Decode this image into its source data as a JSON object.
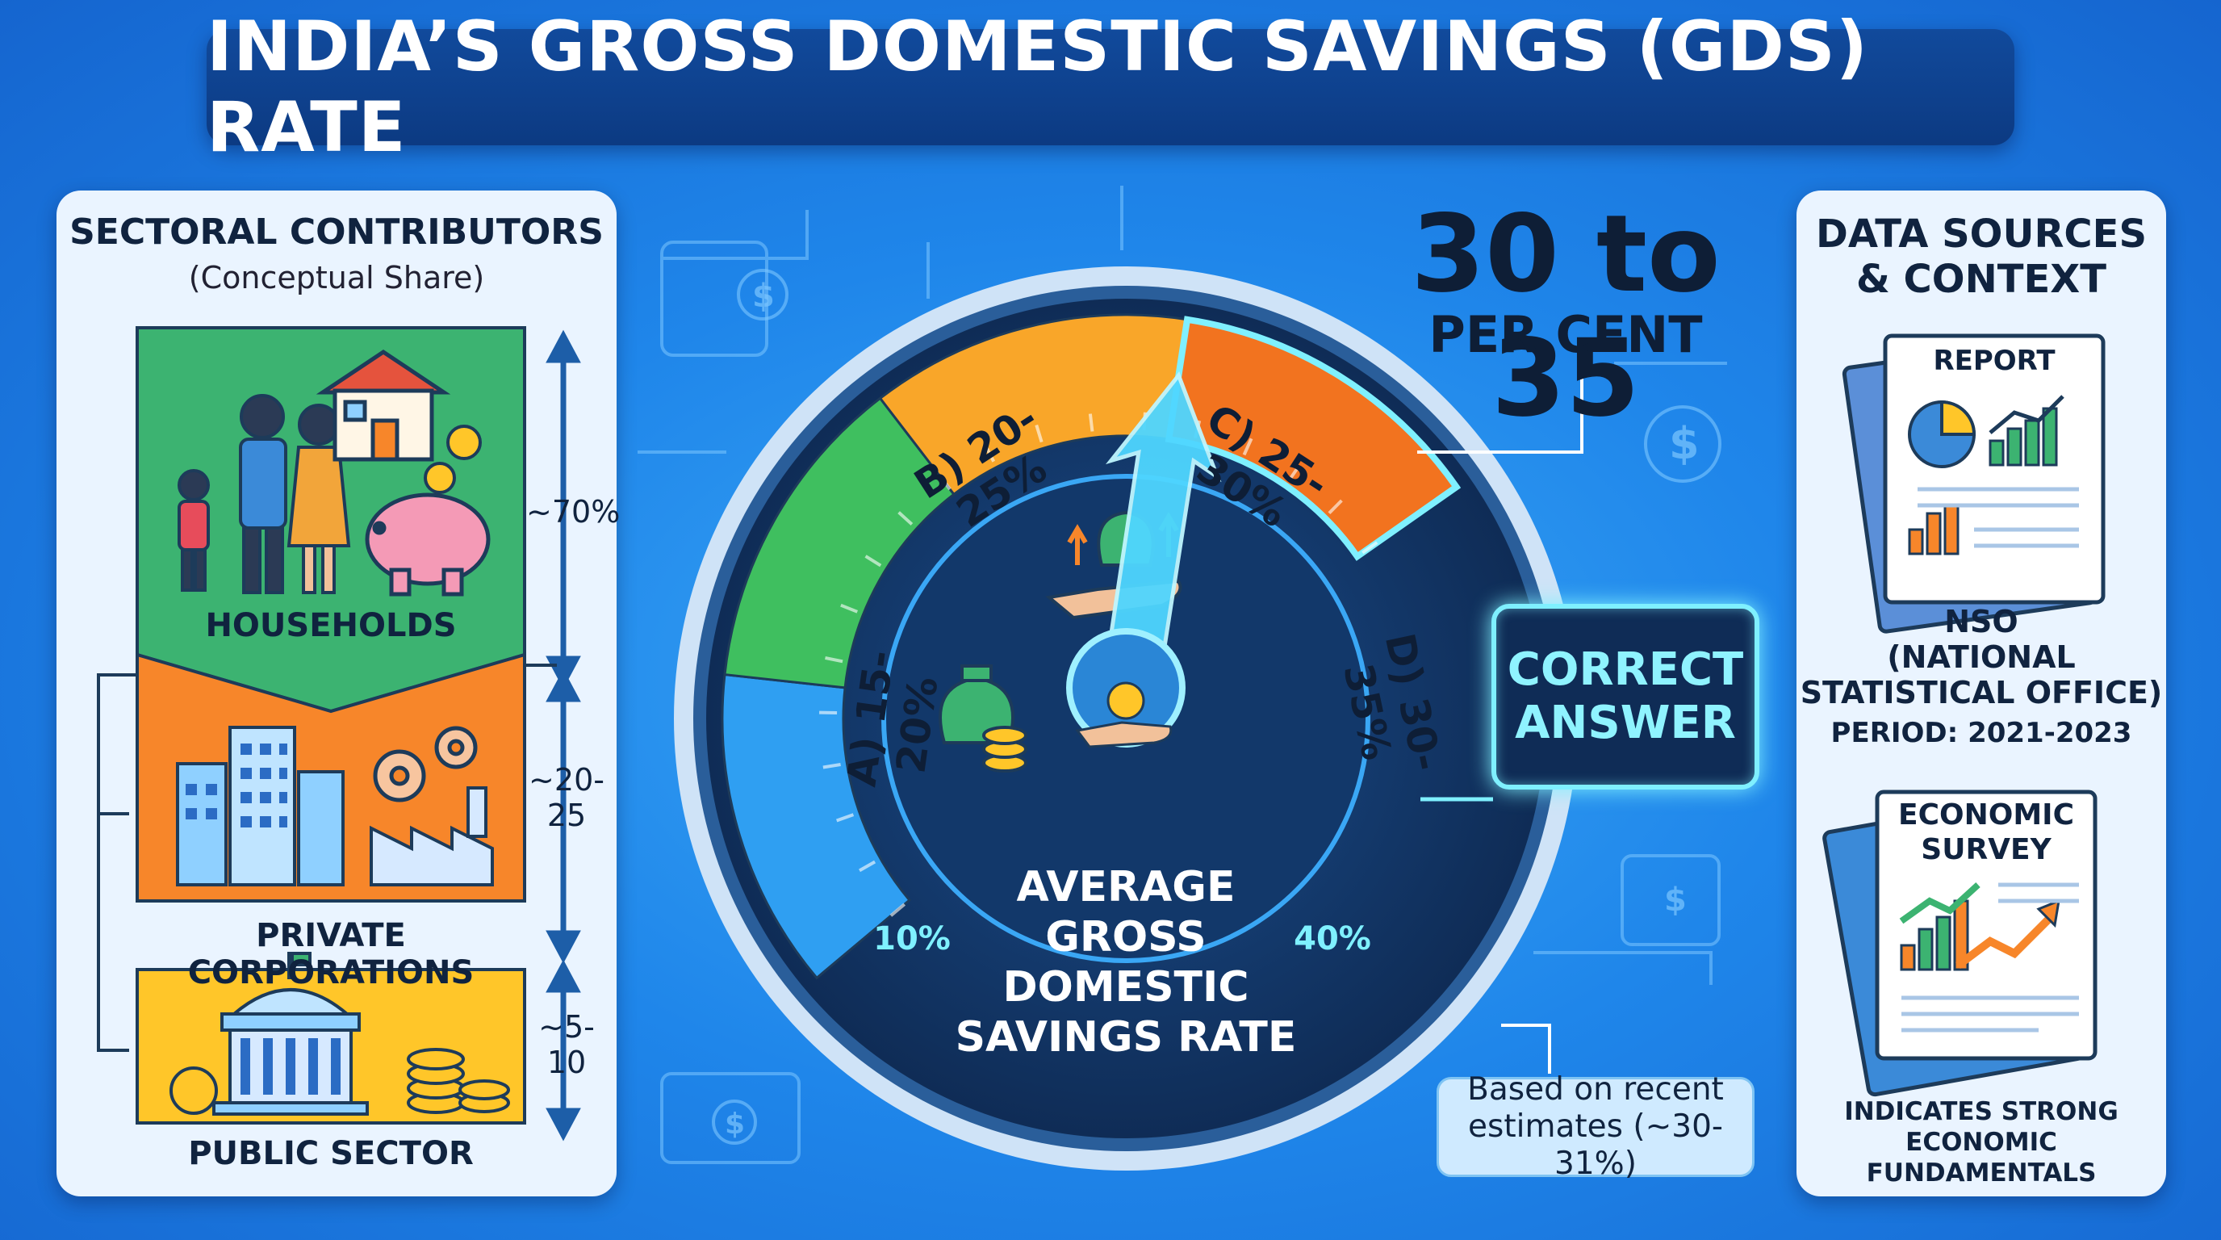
{
  "title": "INDIA’S GROSS DOMESTIC SAVINGS (GDS) RATE",
  "left_panel": {
    "heading": "SECTORAL CONTRIBUTORS",
    "subheading": "(Conceptual Share)",
    "sectors": [
      {
        "label": "HOUSEHOLDS",
        "share_line1": "~70%",
        "share_line2": "",
        "color": "#3cb371"
      },
      {
        "label": "PRIVATE CORPORATIONS",
        "share_line1": "~20-",
        "share_line2": "25",
        "color": "#f7862a"
      },
      {
        "label": "PUBLIC SECTOR",
        "share_line1": "~5-",
        "share_line2": "10",
        "color": "#ffc629"
      }
    ]
  },
  "gauge": {
    "segments": [
      {
        "label": "A) 15-20%",
        "color": "#2f9ff2"
      },
      {
        "label": "B) 20-25%",
        "color": "#3fbf5f"
      },
      {
        "label": "C) 25-30%",
        "color": "#f9a629"
      },
      {
        "label": "D) 30-35%",
        "color": "#f2731f"
      }
    ],
    "min_label": "10%",
    "max_label": "40%",
    "center_line1": "AVERAGE",
    "center_line2": "GROSS",
    "center_line3": "DOMESTIC",
    "center_line4": "SAVINGS RATE",
    "needle_value_range": [
      30,
      35
    ]
  },
  "answer": {
    "big_number": "30 to 35",
    "unit": "PER CENT",
    "correct_line1": "CORRECT",
    "correct_line2": "ANSWER",
    "note_line1": "Based on recent",
    "note_line2": "estimates (~30-31%)"
  },
  "right_panel": {
    "heading_line1": "DATA SOURCES",
    "heading_line2": "& CONTEXT",
    "report_label": "REPORT",
    "source_line1": "NSO",
    "source_line2": "(NATIONAL",
    "source_line3": "STATISTICAL OFFICE)",
    "period": "PERIOD: 2021-2023",
    "survey_line1": "ECONOMIC",
    "survey_line2": "SURVEY",
    "footer_line1": "INDICATES STRONG",
    "footer_line2": "ECONOMIC FUNDAMENTALS"
  },
  "colors": {
    "background": "#1f86ea",
    "title_bar": "#0c3a82",
    "gauge_dial": "#0f2c56",
    "highlight": "#7ff0ff"
  },
  "icons": [
    "family-icon",
    "house-icon",
    "piggy-bank-icon",
    "coin-icon",
    "office-buildings-icon",
    "gears-icon",
    "factory-icon",
    "government-building-icon",
    "coin-stack-icon",
    "money-bag-icon",
    "hand-coin-icon",
    "report-icon",
    "pie-chart-icon",
    "bar-chart-icon",
    "trend-arrow-icon",
    "dollar-icon"
  ]
}
